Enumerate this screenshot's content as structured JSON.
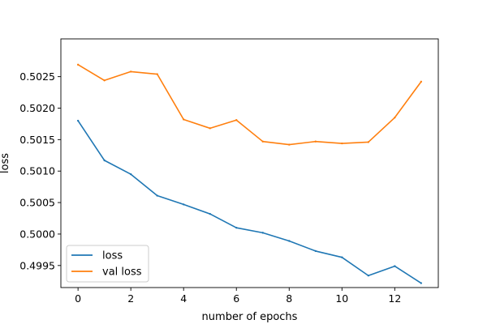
{
  "chart_data": {
    "type": "line",
    "title": "",
    "xlabel": "number of epochs",
    "ylabel": "loss",
    "x": [
      0,
      1,
      2,
      3,
      4,
      5,
      6,
      7,
      8,
      9,
      10,
      11,
      12,
      13
    ],
    "xlim": [
      -0.65,
      13.65
    ],
    "ylim": [
      0.49915,
      0.5031
    ],
    "xticks": [
      0,
      2,
      4,
      6,
      8,
      10,
      12
    ],
    "xtick_labels": [
      "0",
      "2",
      "4",
      "6",
      "8",
      "10",
      "12"
    ],
    "yticks": [
      0.4995,
      0.5,
      0.5005,
      0.501,
      0.5015,
      0.502,
      0.5025
    ],
    "ytick_labels": [
      "0.4995",
      "0.5000",
      "0.5005",
      "0.5010",
      "0.5015",
      "0.5020",
      "0.5025"
    ],
    "grid": false,
    "legend_position": "lower-left",
    "series": [
      {
        "name": "loss",
        "color": "#1f77b4",
        "values": [
          0.5018,
          0.50117,
          0.50095,
          0.50061,
          0.50047,
          0.50032,
          0.5001,
          0.50002,
          0.49989,
          0.49973,
          0.49963,
          0.49934,
          0.49949,
          0.49922
        ]
      },
      {
        "name": "val loss",
        "color": "#ff7f0e",
        "values": [
          0.50269,
          0.50244,
          0.50258,
          0.50254,
          0.50182,
          0.50168,
          0.50181,
          0.50147,
          0.50142,
          0.50147,
          0.50144,
          0.50146,
          0.50185,
          0.50242
        ]
      }
    ]
  }
}
